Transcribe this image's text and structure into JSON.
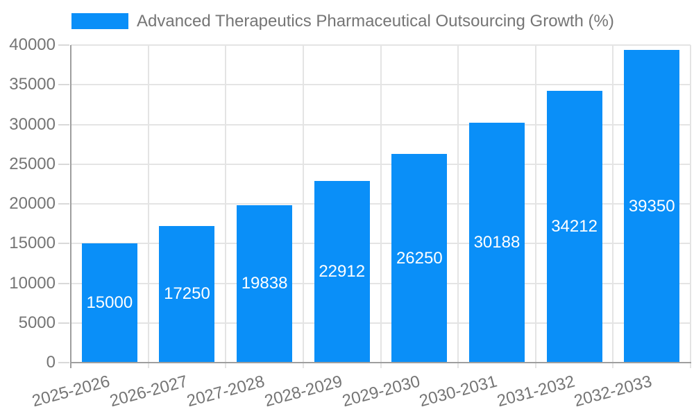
{
  "legend": {
    "series_label": "Advanced Therapeutics Pharmaceutical Outsourcing Growth (%)"
  },
  "chart_data": {
    "type": "bar",
    "title": "",
    "xlabel": "",
    "ylabel": "",
    "categories": [
      "2025-2026",
      "2026-2027",
      "2027-2028",
      "2028-2029",
      "2029-2030",
      "2030-2031",
      "2031-2032",
      "2032-2033"
    ],
    "values": [
      15000,
      17250,
      19838,
      22912,
      26250,
      30188,
      34212,
      39350
    ],
    "series": [
      {
        "name": "Advanced Therapeutics Pharmaceutical Outsourcing Growth (%)",
        "values": [
          15000,
          17250,
          19838,
          22912,
          26250,
          30188,
          34212,
          39350
        ]
      }
    ],
    "value_labels": [
      "15000",
      "17250",
      "19838",
      "22912",
      "26250",
      "30188",
      "34212",
      "39350"
    ],
    "value_label_position": "inside-center",
    "ylim": [
      0,
      40000
    ],
    "yticks": [
      0,
      5000,
      10000,
      15000,
      20000,
      25000,
      30000,
      35000,
      40000
    ],
    "grid": true,
    "legend_position": "top-left",
    "x_label_rotation_deg": -15,
    "colors": {
      "bar": "#0A8FF8",
      "value_label": "#FFFFFF",
      "grid": "#E4E4E4",
      "axis": "#9E9E9E",
      "tick": "#D9D9D9",
      "text": "#757575"
    }
  }
}
